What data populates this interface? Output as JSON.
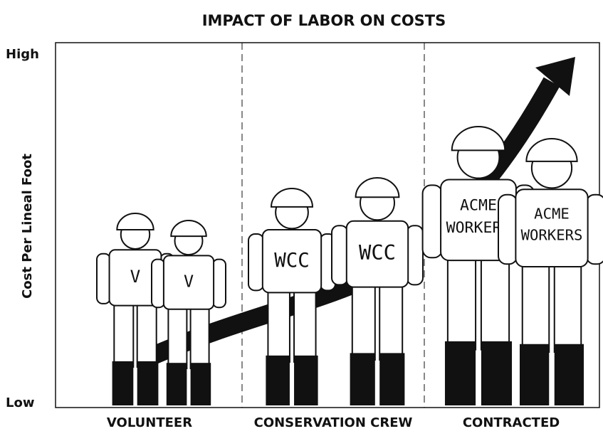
{
  "title": "IMPACT OF LABOR ON COSTS",
  "axis": {
    "label": "Cost Per Lineal Foot",
    "high": "High",
    "low": "Low"
  },
  "columns": [
    {
      "label": "VOLUNTEER",
      "workers": [
        {
          "shirt": [
            "V"
          ]
        },
        {
          "shirt": [
            "V"
          ]
        }
      ]
    },
    {
      "label": "CONSERVATION CREW",
      "workers": [
        {
          "shirt": [
            "WCC"
          ]
        },
        {
          "shirt": [
            "WCC"
          ]
        }
      ]
    },
    {
      "label": "CONTRACTED",
      "workers": [
        {
          "shirt": [
            "ACME",
            "WORKERS"
          ]
        },
        {
          "shirt": [
            "ACME",
            "WORKERS"
          ]
        }
      ]
    }
  ]
}
